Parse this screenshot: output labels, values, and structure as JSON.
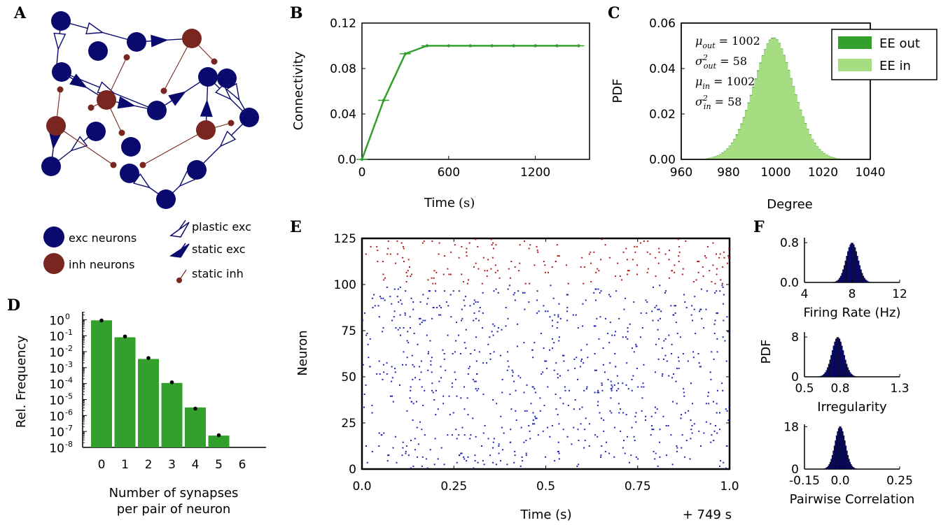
{
  "colors": {
    "exc": "#0a0a6e",
    "inh": "#7a2620",
    "green": "#33a02c",
    "light_green": "#a6dc82",
    "spike_exc": "#1a22b0",
    "spike_inh": "#b01818",
    "hist_fill": "#0a0a6e"
  },
  "panel_a": {
    "letter": "A",
    "legend": {
      "exc_neurons": "exc neurons",
      "inh_neurons": "inh neurons",
      "plastic_exc": "plastic exc",
      "static_exc": "static exc",
      "static_inh": "static inh"
    },
    "icons": [
      "exc-neuron-icon",
      "inh-neuron-icon",
      "plastic-synapse-icon",
      "static-exc-synapse-icon",
      "static-inh-synapse-icon"
    ]
  },
  "chart_data": [
    {
      "panel": "B",
      "type": "line",
      "ylabel": "Connectivity",
      "xlabel": "Time",
      "xlabel_unit": "(s)",
      "x": [
        0,
        150,
        300,
        450,
        600,
        750,
        900,
        1050,
        1200,
        1350,
        1500
      ],
      "values": [
        0.0,
        0.052,
        0.093,
        0.1,
        0.1,
        0.1,
        0.1,
        0.1,
        0.1,
        0.1,
        0.1
      ],
      "xlim": [
        0,
        1575
      ],
      "ylim": [
        0,
        0.12
      ],
      "xticks": [
        "0",
        "600",
        "1200"
      ],
      "xtick_values": [
        0,
        600,
        1200
      ],
      "yticks": [
        "0.0",
        "0.04",
        "0.08",
        "0.12"
      ],
      "ytick_values": [
        0,
        0.04,
        0.08,
        0.12
      ]
    },
    {
      "panel": "C",
      "type": "bar",
      "ylabel": "PDF",
      "xlabel": "Degree",
      "xlim": [
        960,
        1040
      ],
      "ylim": [
        0,
        0.06
      ],
      "xticks": [
        "960",
        "980",
        "1000",
        "1020",
        "1040"
      ],
      "xtick_values": [
        960,
        980,
        1000,
        1020,
        1040
      ],
      "yticks": [
        "0.00",
        "0.02",
        "0.04",
        "0.06"
      ],
      "ytick_values": [
        0,
        0.02,
        0.04,
        0.06
      ],
      "bin_start": 970,
      "bin_width": 1,
      "series": [
        {
          "name": "EE out",
          "values": [
            0.0004,
            0.0006,
            0.0008,
            0.0011,
            0.0014,
            0.0018,
            0.0023,
            0.003,
            0.0038,
            0.0048,
            0.006,
            0.0074,
            0.009,
            0.011,
            0.0133,
            0.0158,
            0.0186,
            0.0217,
            0.025,
            0.0284,
            0.032,
            0.0356,
            0.0392,
            0.0426,
            0.0458,
            0.0486,
            0.051,
            0.0527,
            0.0535,
            0.0536,
            0.0528,
            0.0512,
            0.0488,
            0.046,
            0.0428,
            0.0394,
            0.0358,
            0.0322,
            0.0286,
            0.0252,
            0.0219,
            0.0189,
            0.016,
            0.0134,
            0.0111,
            0.009,
            0.0073,
            0.0058,
            0.0046,
            0.0036,
            0.0028,
            0.0021,
            0.0016,
            0.0012,
            0.0009,
            0.0006,
            0.0004,
            0.0003,
            0.0002,
            0.0001
          ]
        },
        {
          "name": "EE in",
          "values": [
            0.0003,
            0.0005,
            0.0007,
            0.001,
            0.0013,
            0.0017,
            0.0022,
            0.0028,
            0.0036,
            0.0046,
            0.0058,
            0.0072,
            0.0088,
            0.0107,
            0.013,
            0.0155,
            0.0183,
            0.0214,
            0.0247,
            0.0281,
            0.0317,
            0.0353,
            0.0389,
            0.0423,
            0.0455,
            0.0484,
            0.0508,
            0.0525,
            0.0532,
            0.0534,
            0.0526,
            0.051,
            0.0486,
            0.0458,
            0.0426,
            0.0392,
            0.0356,
            0.032,
            0.0284,
            0.025,
            0.0217,
            0.0187,
            0.0158,
            0.0132,
            0.0109,
            0.0089,
            0.0071,
            0.0057,
            0.0045,
            0.0035,
            0.0027,
            0.002,
            0.0015,
            0.0011,
            0.0008,
            0.0006,
            0.0004,
            0.0003,
            0.0002,
            0.0001
          ]
        }
      ],
      "legend_position": "top-right",
      "annotations": [
        {
          "sym": "μ",
          "sub": "out",
          "sup": "",
          "value": "= 1002"
        },
        {
          "sym": "σ",
          "sub": "out",
          "sup": "2",
          "value": "= 58"
        },
        {
          "sym": "μ",
          "sub": "in",
          "sup": "",
          "value": "= 1002"
        },
        {
          "sym": "σ",
          "sub": "in",
          "sup": "2",
          "value": "= 58"
        }
      ]
    },
    {
      "panel": "D",
      "type": "bar",
      "ylabel": "Rel. Frequency",
      "xlabel": "Number of synapses\nper pair of neuron",
      "xlabel_lines": [
        "Number of synapses",
        "per pair of neuron"
      ],
      "log_y": true,
      "categories": [
        "0",
        "1",
        "2",
        "3",
        "4",
        "5",
        "6"
      ],
      "values": [
        0.92,
        0.08,
        0.0035,
        0.00011,
        3.2e-06,
        5.5e-08,
        0
      ],
      "expected": [
        0.9,
        0.09,
        0.004,
        0.00012,
        2.7e-06,
        5.8e-08,
        null
      ],
      "ylim_exp": [
        -8,
        0.5
      ],
      "ytick_base": "10",
      "ytick_exps": [
        "0",
        "-1",
        "-2",
        "-3",
        "-4",
        "-5",
        "-6",
        "-7",
        "-8"
      ],
      "ytick_exp_values": [
        0,
        -1,
        -2,
        -3,
        -4,
        -5,
        -6,
        -7,
        -8
      ]
    },
    {
      "panel": "E",
      "type": "scatter",
      "ylabel": "Neuron",
      "xlabel": "Time (s)",
      "offset_label": "+ 749 s",
      "xlim": [
        0,
        1.0
      ],
      "ylim": [
        0,
        125
      ],
      "xticks": [
        "0.0",
        "0.25",
        "0.5",
        "0.75",
        "1.0"
      ],
      "xtick_values": [
        0,
        0.25,
        0.5,
        0.75,
        1.0
      ],
      "yticks": [
        "0",
        "25",
        "50",
        "75",
        "100",
        "125"
      ],
      "ytick_values": [
        0,
        25,
        50,
        75,
        100,
        125
      ],
      "n_exc": 100,
      "n_inh": 25,
      "exc_rate_hz": 8,
      "inh_rate_hz": 8
    },
    {
      "panel": "F",
      "type": "bar",
      "ylabel": "PDF",
      "subplots": [
        {
          "xlabel": "Firing Rate (Hz)",
          "xlim": [
            4,
            12
          ],
          "ylim": [
            0,
            0.9
          ],
          "xticks": [
            "4",
            "8",
            "12"
          ],
          "xtick_values": [
            4,
            8,
            12
          ],
          "yticks": [
            "0.0",
            "0.8"
          ],
          "ytick_values": [
            0,
            0.8
          ],
          "mean": 8.0,
          "sd": 0.5
        },
        {
          "xlabel": "Irregularity",
          "xlim": [
            0.5,
            1.3
          ],
          "ylim": [
            0,
            9
          ],
          "xticks": [
            "0.5",
            "0.8",
            "1.3"
          ],
          "xtick_values": [
            0.5,
            0.8,
            1.3
          ],
          "yticks": [
            "0",
            "8"
          ],
          "ytick_values": [
            0,
            8
          ],
          "mean": 0.78,
          "sd": 0.05
        },
        {
          "xlabel": "Pairwise Correlation",
          "xlim": [
            -0.15,
            0.25
          ],
          "ylim": [
            0,
            19
          ],
          "xticks": [
            "-0.15",
            "0.0",
            "0.25"
          ],
          "xtick_values": [
            -0.15,
            0,
            0.25
          ],
          "yticks": [
            "0",
            "18"
          ],
          "ytick_values": [
            0,
            18
          ],
          "mean": 0.0,
          "sd": 0.022
        }
      ]
    }
  ]
}
